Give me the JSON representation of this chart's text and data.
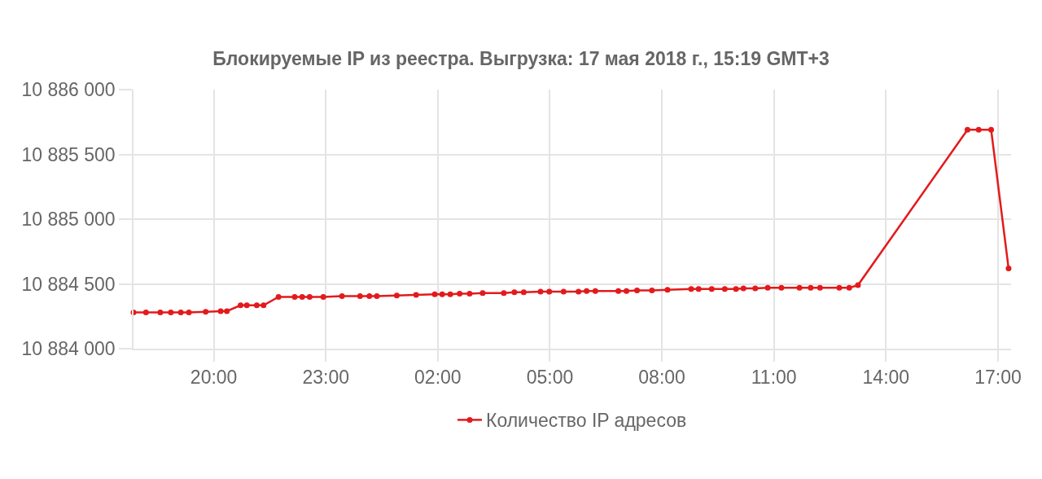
{
  "chart_data": {
    "type": "line",
    "title": "Блокируемые IP из реестра. Выгрузка: 17 мая 2018 г., 15:19 GMT+3",
    "x": [
      "2018-05-16T17:51",
      "2018-05-16T18:11",
      "2018-05-16T18:34",
      "2018-05-16T18:51",
      "2018-05-16T19:07",
      "2018-05-16T19:20",
      "2018-05-16T19:47",
      "2018-05-16T20:11",
      "2018-05-16T20:21",
      "2018-05-16T20:43",
      "2018-05-16T20:53",
      "2018-05-16T21:09",
      "2018-05-16T21:20",
      "2018-05-16T21:44",
      "2018-05-16T22:10",
      "2018-05-16T22:22",
      "2018-05-16T22:34",
      "2018-05-16T22:56",
      "2018-05-16T23:26",
      "2018-05-16T23:55",
      "2018-05-17T00:10",
      "2018-05-17T00:22",
      "2018-05-17T00:54",
      "2018-05-17T01:25",
      "2018-05-17T01:55",
      "2018-05-17T02:07",
      "2018-05-17T02:20",
      "2018-05-17T02:35",
      "2018-05-17T02:51",
      "2018-05-17T03:12",
      "2018-05-17T03:46",
      "2018-05-17T04:03",
      "2018-05-17T04:18",
      "2018-05-17T04:45",
      "2018-05-17T04:59",
      "2018-05-17T05:22",
      "2018-05-17T05:46",
      "2018-05-17T05:59",
      "2018-05-17T06:13",
      "2018-05-17T06:50",
      "2018-05-17T07:03",
      "2018-05-17T07:20",
      "2018-05-17T07:44",
      "2018-05-17T08:09",
      "2018-05-17T08:47",
      "2018-05-17T08:59",
      "2018-05-17T09:20",
      "2018-05-17T09:41",
      "2018-05-17T09:59",
      "2018-05-17T10:11",
      "2018-05-17T10:30",
      "2018-05-17T10:50",
      "2018-05-17T11:12",
      "2018-05-17T11:41",
      "2018-05-17T11:59",
      "2018-05-17T12:14",
      "2018-05-17T12:45",
      "2018-05-17T13:01",
      "2018-05-17T13:15",
      "2018-05-17T16:11",
      "2018-05-17T16:29",
      "2018-05-17T16:49",
      "2018-05-17T17:17"
    ],
    "series": [
      {
        "name": "Количество IP адресов",
        "color": "#e31a1c",
        "values": [
          10884280,
          10884280,
          10884280,
          10884280,
          10884280,
          10884280,
          10884285,
          10884290,
          10884290,
          10884335,
          10884335,
          10884335,
          10884335,
          10884400,
          10884400,
          10884400,
          10884400,
          10884400,
          10884405,
          10884405,
          10884405,
          10884405,
          10884410,
          10884415,
          10884420,
          10884420,
          10884420,
          10884425,
          10884425,
          10884430,
          10884430,
          10884435,
          10884435,
          10884440,
          10884440,
          10884440,
          10884440,
          10884445,
          10884445,
          10884445,
          10884445,
          10884450,
          10884450,
          10884455,
          10884460,
          10884460,
          10884460,
          10884460,
          10884460,
          10884465,
          10884465,
          10884470,
          10884470,
          10884470,
          10884470,
          10884470,
          10884470,
          10884470,
          10884490,
          10885690,
          10885690,
          10885690,
          10884620
        ]
      }
    ],
    "xlim": [
      "2018-05-16T17:51",
      "2018-05-17T17:21"
    ],
    "xticks": [
      {
        "value": "2018-05-16T20:00",
        "label": "20:00"
      },
      {
        "value": "2018-05-16T23:00",
        "label": "23:00"
      },
      {
        "value": "2018-05-17T02:00",
        "label": "02:00"
      },
      {
        "value": "2018-05-17T05:00",
        "label": "05:00"
      },
      {
        "value": "2018-05-17T08:00",
        "label": "08:00"
      },
      {
        "value": "2018-05-17T11:00",
        "label": "11:00"
      },
      {
        "value": "2018-05-17T14:00",
        "label": "14:00"
      },
      {
        "value": "2018-05-17T17:00",
        "label": "17:00"
      }
    ],
    "ylim": [
      10884000,
      10886000
    ],
    "yticks": [
      {
        "value": 10884000,
        "label": "10 884 000"
      },
      {
        "value": 10884500,
        "label": "10 884 500"
      },
      {
        "value": 10885000,
        "label": "10 885 000"
      },
      {
        "value": 10885500,
        "label": "10 885 500"
      },
      {
        "value": 10886000,
        "label": "10 886 000"
      }
    ],
    "grid": true,
    "legend": "bottom",
    "marker": "circle",
    "line_style": "solid"
  }
}
